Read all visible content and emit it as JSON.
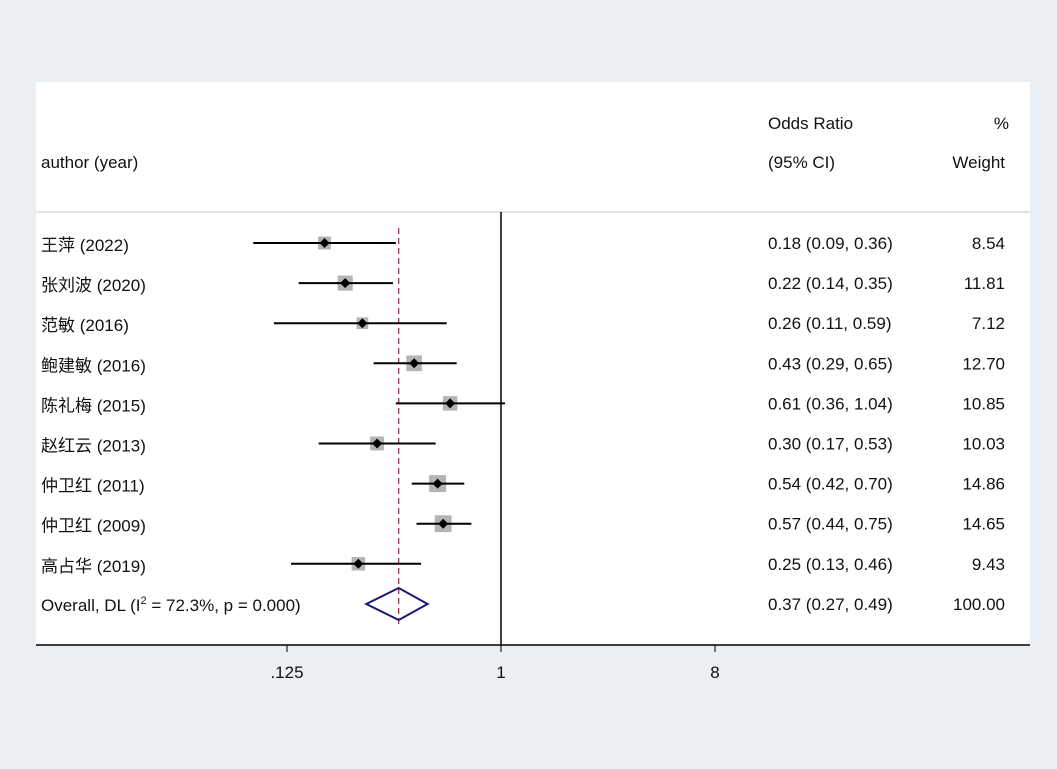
{
  "chart_data": {
    "type": "forest",
    "header": {
      "study_col": "author (year)",
      "effect_col_line1": "Odds Ratio",
      "effect_col_line2": "(95% CI)",
      "weight_col_line1": "%",
      "weight_col_line2": "Weight"
    },
    "studies": [
      {
        "label": "王萍 (2022)",
        "or": 0.18,
        "lo": 0.09,
        "hi": 0.36,
        "ci_text": "0.18 (0.09, 0.36)",
        "weight": "8.54"
      },
      {
        "label": "张刘波 (2020)",
        "or": 0.22,
        "lo": 0.14,
        "hi": 0.35,
        "ci_text": "0.22 (0.14, 0.35)",
        "weight": "11.81"
      },
      {
        "label": "范敏 (2016)",
        "or": 0.26,
        "lo": 0.11,
        "hi": 0.59,
        "ci_text": "0.26 (0.11, 0.59)",
        "weight": "7.12"
      },
      {
        "label": "鲍建敏 (2016)",
        "or": 0.43,
        "lo": 0.29,
        "hi": 0.65,
        "ci_text": "0.43 (0.29, 0.65)",
        "weight": "12.70"
      },
      {
        "label": "陈礼梅 (2015)",
        "or": 0.61,
        "lo": 0.36,
        "hi": 1.04,
        "ci_text": "0.61 (0.36, 1.04)",
        "weight": "10.85"
      },
      {
        "label": "赵红云 (2013)",
        "or": 0.3,
        "lo": 0.17,
        "hi": 0.53,
        "ci_text": "0.30 (0.17, 0.53)",
        "weight": "10.03"
      },
      {
        "label": "仲卫红 (2011)",
        "or": 0.54,
        "lo": 0.42,
        "hi": 0.7,
        "ci_text": "0.54 (0.42, 0.70)",
        "weight": "14.86"
      },
      {
        "label": "仲卫红 (2009)",
        "or": 0.57,
        "lo": 0.44,
        "hi": 0.75,
        "ci_text": "0.57 (0.44, 0.75)",
        "weight": "14.65"
      },
      {
        "label": "高占华 (2019)",
        "or": 0.25,
        "lo": 0.13,
        "hi": 0.46,
        "ci_text": "0.25 (0.13, 0.46)",
        "weight": "9.43"
      }
    ],
    "overall": {
      "label_prefix": "Overall, DL (I",
      "label_sup": "2",
      "label_suffix": " = 72.3%, p = 0.000)",
      "or": 0.37,
      "lo": 0.27,
      "hi": 0.49,
      "ci_text": "0.37 (0.27, 0.49)",
      "weight": "100.00"
    },
    "x_scale": "log2",
    "null_value": 1,
    "x_ticks": [
      {
        "value": 0.125,
        "label": ".125"
      },
      {
        "value": 1,
        "label": "1"
      },
      {
        "value": 8,
        "label": "8"
      }
    ],
    "colors": {
      "box": "#b4b4b4",
      "point": "#000000",
      "diamond": "#1b1b6b",
      "ref_line": "#8b2a3a"
    }
  }
}
